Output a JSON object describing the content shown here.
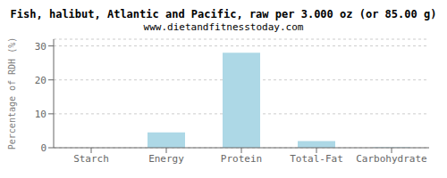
{
  "chart_data": {
    "type": "bar",
    "title": "Fish, halibut, Atlantic and Pacific, raw per 3.000 oz (or 85.00 g)",
    "subtitle": "www.dietandfitnesstoday.com",
    "categories": [
      "Starch",
      "Energy",
      "Protein",
      "Total-Fat",
      "Carbohydrate"
    ],
    "values": [
      0,
      4.5,
      28,
      2.0,
      0.1
    ],
    "color": "#add8e6",
    "ylabel": "Percentage of RDH (%)",
    "ylim": [
      0,
      32
    ],
    "yticks": [
      0,
      10,
      20,
      30
    ],
    "grid": true
  }
}
